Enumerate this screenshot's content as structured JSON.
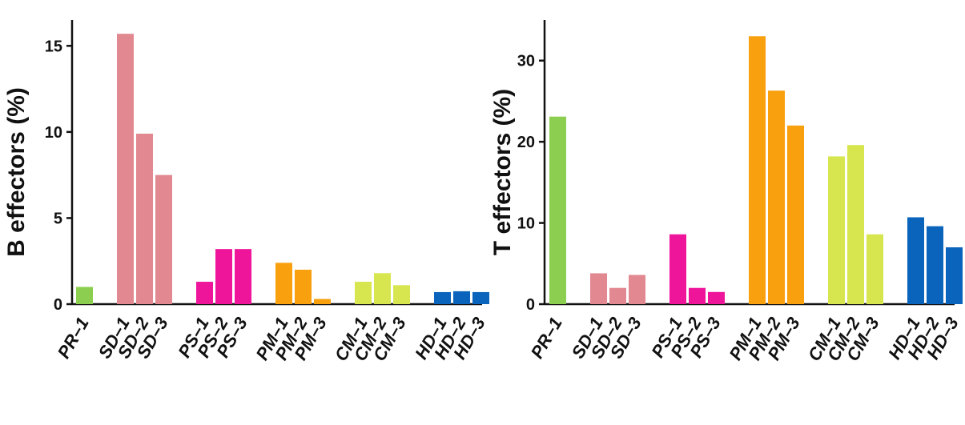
{
  "chart_data": [
    {
      "type": "bar",
      "xlabel": "",
      "ylabel": "B effectors (%)",
      "ylim": [
        0,
        16.5
      ],
      "yticks": [
        0,
        5,
        10,
        15
      ],
      "groups": [
        {
          "name": "PR",
          "color": "#8ccf50",
          "categories": [
            "PR–1"
          ],
          "values": [
            1.0
          ]
        },
        {
          "name": "SD",
          "color": "#e28890",
          "categories": [
            "SD–1",
            "SD–2",
            "SD–3"
          ],
          "values": [
            15.7,
            9.9,
            7.5
          ]
        },
        {
          "name": "PS",
          "color": "#ee159a",
          "categories": [
            "PS–1",
            "PS–2",
            "PS–3"
          ],
          "values": [
            1.3,
            3.2,
            3.2
          ]
        },
        {
          "name": "PM",
          "color": "#f9a00e",
          "categories": [
            "PM–1",
            "PM–2",
            "PM–3"
          ],
          "values": [
            2.4,
            2.0,
            0.3
          ]
        },
        {
          "name": "CM",
          "color": "#d7e64f",
          "categories": [
            "CM–1",
            "CM–2",
            "CM–3"
          ],
          "values": [
            1.3,
            1.8,
            1.1
          ]
        },
        {
          "name": "HD",
          "color": "#0a64bb",
          "categories": [
            "HD–1",
            "HD–2",
            "HD–3"
          ],
          "values": [
            0.7,
            0.75,
            0.7
          ]
        }
      ]
    },
    {
      "type": "bar",
      "xlabel": "",
      "ylabel": "T effectors (%)",
      "ylim": [
        0,
        35
      ],
      "yticks": [
        0,
        10,
        20,
        30
      ],
      "groups": [
        {
          "name": "PR",
          "color": "#8ccf50",
          "categories": [
            "PR–1"
          ],
          "values": [
            23.1
          ]
        },
        {
          "name": "SD",
          "color": "#e28890",
          "categories": [
            "SD–1",
            "SD–2",
            "SD–3"
          ],
          "values": [
            3.8,
            2.0,
            3.6
          ]
        },
        {
          "name": "PS",
          "color": "#ee159a",
          "categories": [
            "PS–1",
            "PS–2",
            "PS–3"
          ],
          "values": [
            8.6,
            2.0,
            1.5
          ]
        },
        {
          "name": "PM",
          "color": "#f9a00e",
          "categories": [
            "PM–1",
            "PM–2",
            "PM–3"
          ],
          "values": [
            33.0,
            26.3,
            22.0
          ]
        },
        {
          "name": "CM",
          "color": "#d7e64f",
          "categories": [
            "CM–1",
            "CM–2",
            "CM–3"
          ],
          "values": [
            18.2,
            19.6,
            8.6
          ]
        },
        {
          "name": "HD",
          "color": "#0a64bb",
          "categories": [
            "HD–1",
            "HD–2",
            "HD–3"
          ],
          "values": [
            10.7,
            9.6,
            7.0
          ]
        }
      ]
    }
  ]
}
